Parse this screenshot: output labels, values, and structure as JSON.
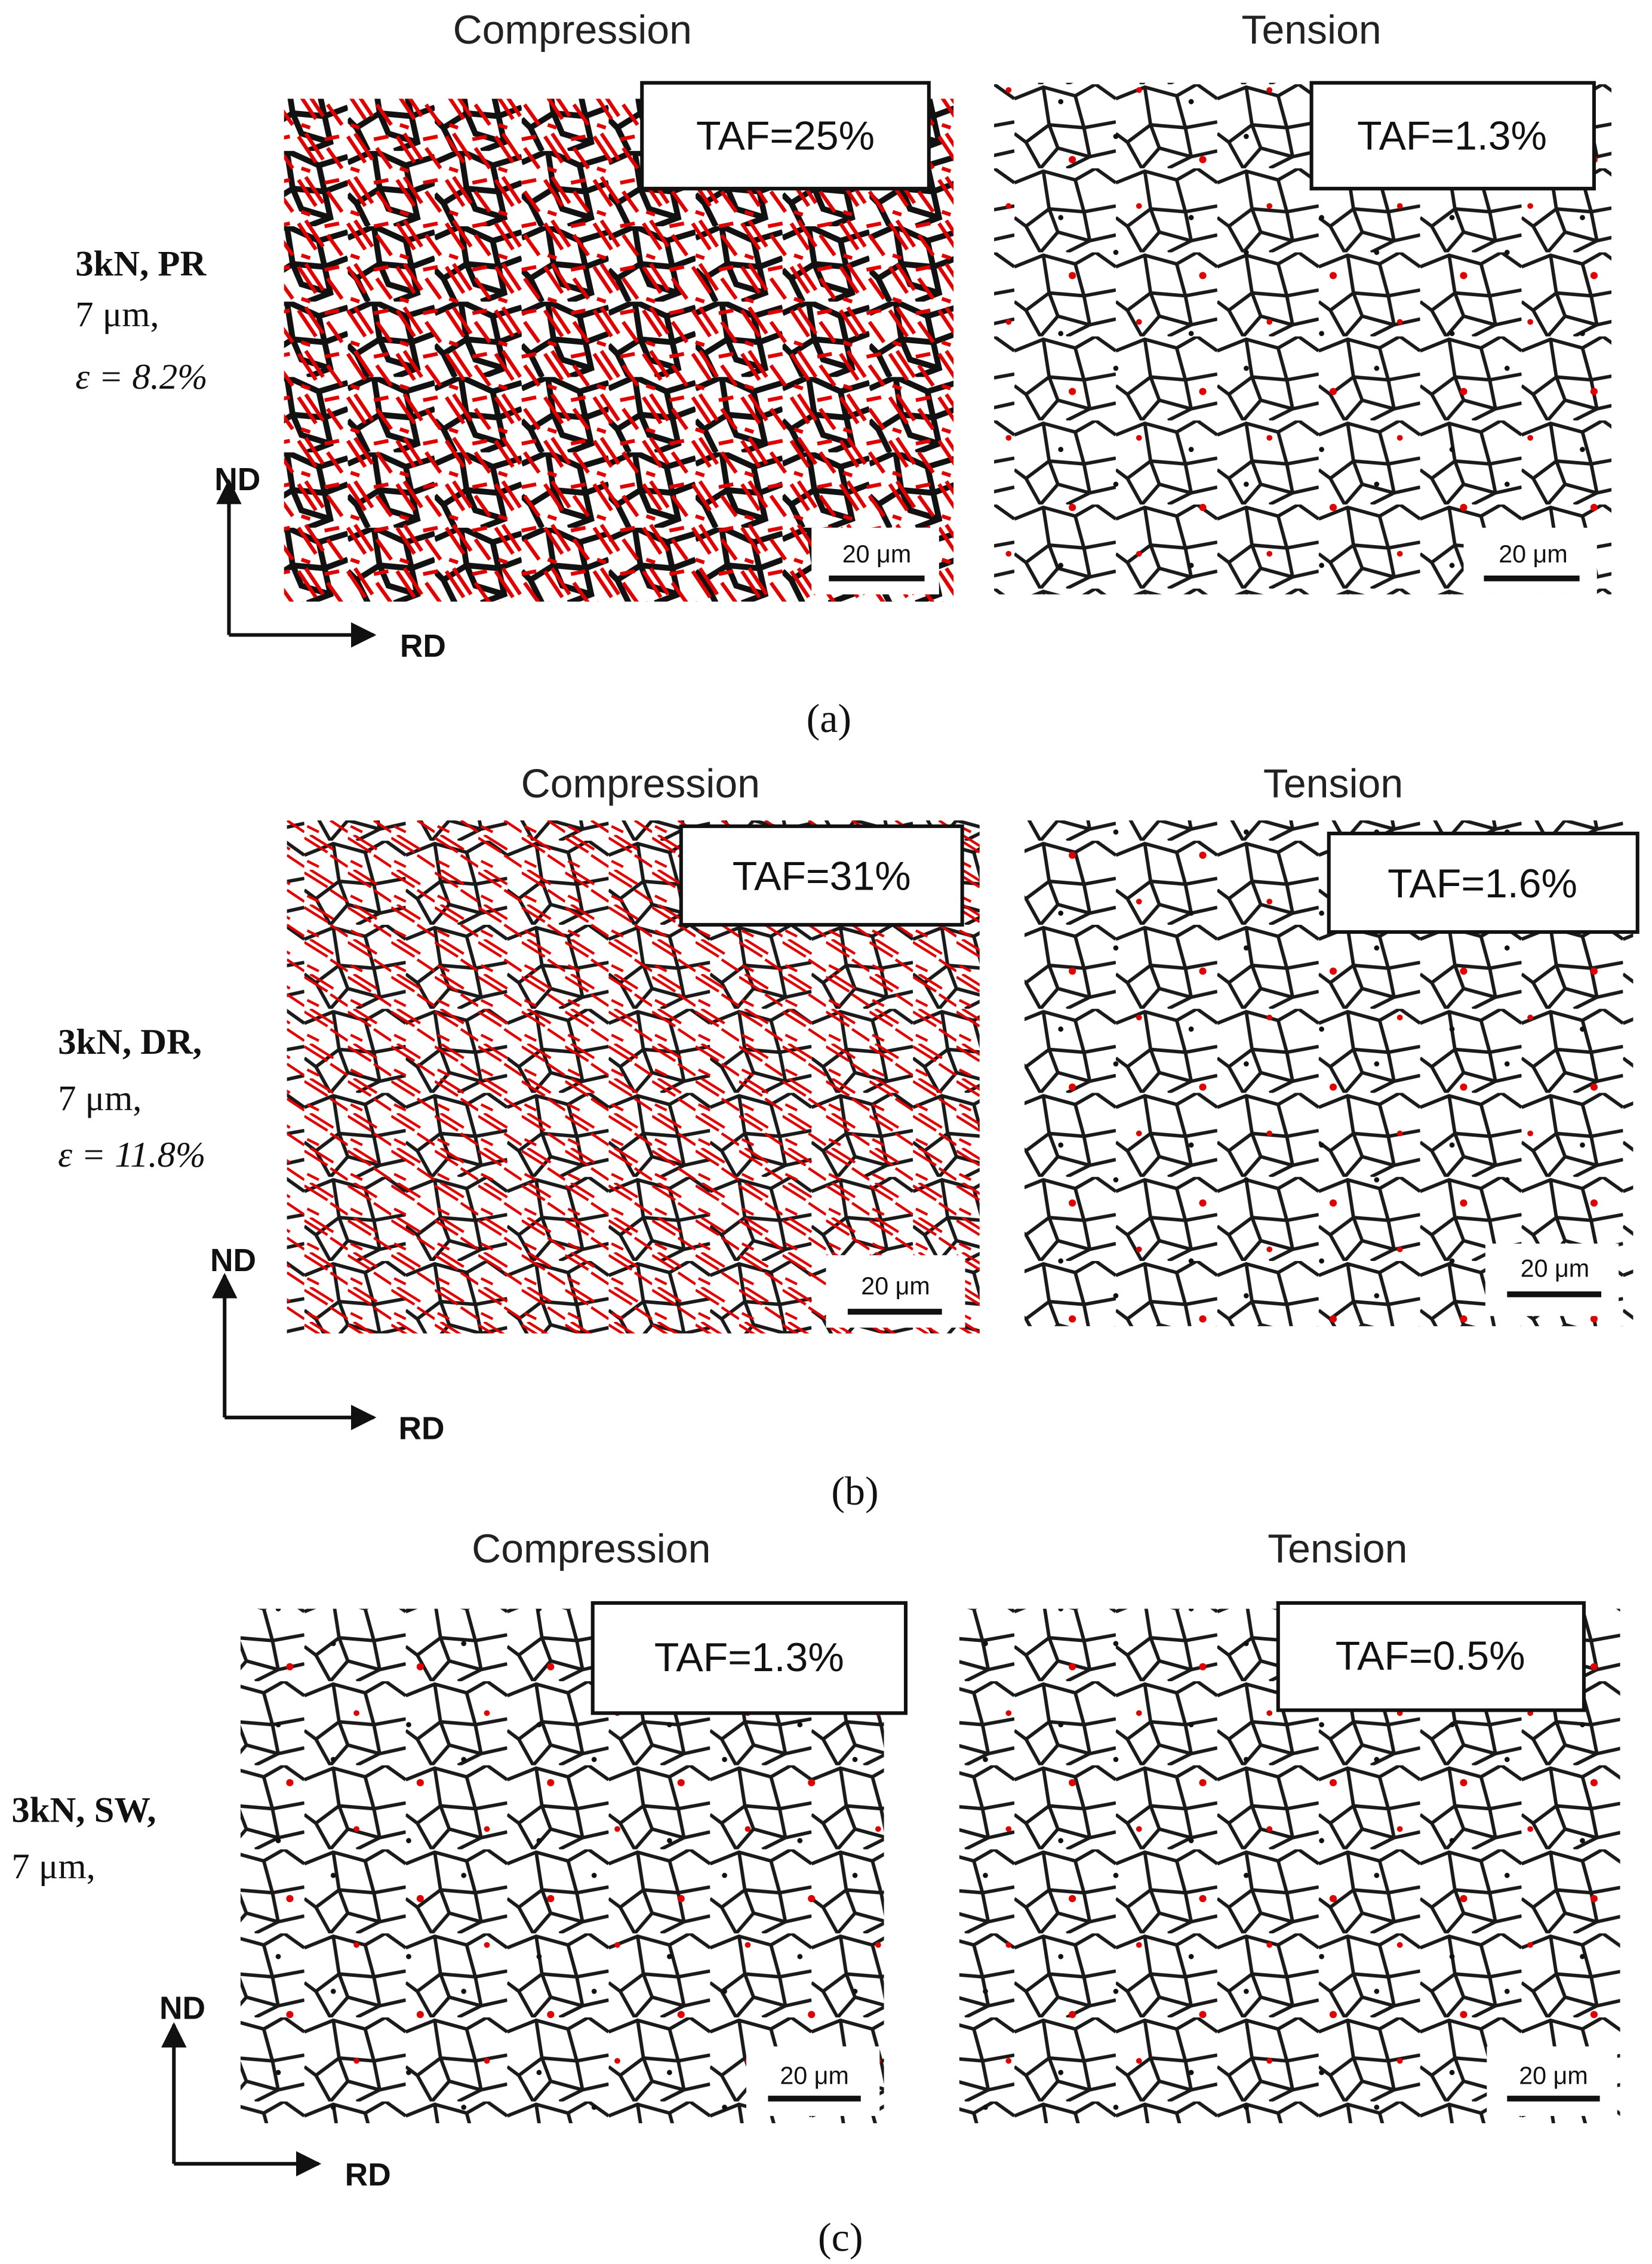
{
  "panels": [
    {
      "label": "(a)",
      "sample": {
        "name": "3kN, PR",
        "size": "7 μm,",
        "strain": "ε = 8.2%"
      },
      "maps": [
        {
          "title": "Compression",
          "taf": "TAF=25%",
          "scale_bar": "20 μm"
        },
        {
          "title": "Tension",
          "taf": "TAF=1.3%",
          "scale_bar": "20 μm"
        }
      ],
      "axes": {
        "y": "ND",
        "x": "RD"
      }
    },
    {
      "label": "(b)",
      "sample": {
        "name": "3kN, DR,",
        "size": "7 μm,",
        "strain": "ε = 11.8%"
      },
      "maps": [
        {
          "title": "Compression",
          "taf": "TAF=31%",
          "scale_bar": "20 μm"
        },
        {
          "title": "Tension",
          "taf": "TAF=1.6%",
          "scale_bar": "20 μm"
        }
      ],
      "axes": {
        "y": "ND",
        "x": "RD"
      }
    },
    {
      "label": "(c)",
      "sample": {
        "name": "3kN, SW,",
        "size": "7 μm,"
      },
      "maps": [
        {
          "title": "Compression",
          "taf": "TAF=1.3%",
          "scale_bar": "20 μm"
        },
        {
          "title": "Tension",
          "taf": "TAF=0.5%",
          "scale_bar": "20 μm"
        }
      ],
      "axes": {
        "y": "ND",
        "x": "RD"
      }
    }
  ]
}
